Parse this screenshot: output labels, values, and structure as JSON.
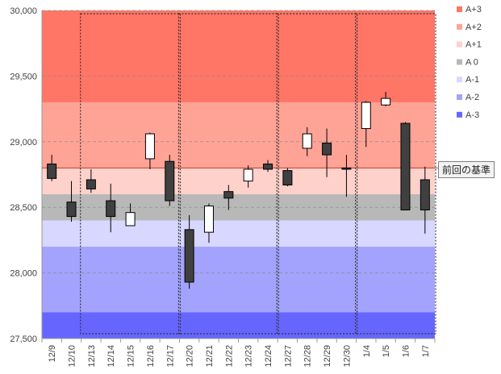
{
  "chart_data": {
    "type": "candlestick",
    "ylim": [
      27500,
      30000
    ],
    "y_ticks": [
      "27,500",
      "28,000",
      "28,500",
      "29,000",
      "29,500",
      "30,000"
    ],
    "y_tick_values": [
      27500,
      28000,
      28500,
      29000,
      29500,
      30000
    ],
    "bands": [
      {
        "name": "A+3",
        "from": 29300,
        "to": 30000,
        "color": "#ff7566"
      },
      {
        "name": "A+2",
        "from": 28800,
        "to": 29300,
        "color": "#ffa396"
      },
      {
        "name": "A+1",
        "from": 28600,
        "to": 28800,
        "color": "#ffd1cb"
      },
      {
        "name": "A 0",
        "from": 28400,
        "to": 28600,
        "color": "#b8b8b8"
      },
      {
        "name": "A-1",
        "from": 28200,
        "to": 28400,
        "color": "#d7d7ff"
      },
      {
        "name": "A-2",
        "from": 27700,
        "to": 28200,
        "color": "#a3a3fe"
      },
      {
        "name": "A-3",
        "from": 27500,
        "to": 27700,
        "color": "#6666ff"
      }
    ],
    "reference_line": {
      "value": 28800,
      "label": "前回の基準"
    },
    "categories": [
      "12/9",
      "12/10",
      "12/13",
      "12/14",
      "12/15",
      "12/16",
      "12/17",
      "12/20",
      "12/21",
      "12/22",
      "12/23",
      "12/24",
      "12/27",
      "12/28",
      "12/29",
      "12/30",
      "1/4",
      "1/5",
      "1/6",
      "1/7"
    ],
    "ohlc": [
      {
        "o": 28830,
        "h": 28900,
        "l": 28700,
        "c": 28720
      },
      {
        "o": 28540,
        "h": 28700,
        "l": 28390,
        "c": 28430
      },
      {
        "o": 28710,
        "h": 28790,
        "l": 28610,
        "c": 28640
      },
      {
        "o": 28550,
        "h": 28680,
        "l": 28310,
        "c": 28430
      },
      {
        "o": 28360,
        "h": 28530,
        "l": 28360,
        "c": 28460
      },
      {
        "o": 28870,
        "h": 29070,
        "l": 28790,
        "c": 29060
      },
      {
        "o": 28850,
        "h": 28900,
        "l": 28510,
        "c": 28550
      },
      {
        "o": 28330,
        "h": 28440,
        "l": 27880,
        "c": 27930
      },
      {
        "o": 28310,
        "h": 28530,
        "l": 28230,
        "c": 28510
      },
      {
        "o": 28620,
        "h": 28670,
        "l": 28480,
        "c": 28570
      },
      {
        "o": 28700,
        "h": 28820,
        "l": 28650,
        "c": 28790
      },
      {
        "o": 28830,
        "h": 28860,
        "l": 28770,
        "c": 28790
      },
      {
        "o": 28780,
        "h": 28800,
        "l": 28660,
        "c": 28670
      },
      {
        "o": 28950,
        "h": 29110,
        "l": 28890,
        "c": 29060
      },
      {
        "o": 28990,
        "h": 29100,
        "l": 28730,
        "c": 28900
      },
      {
        "o": 28800,
        "h": 28900,
        "l": 28580,
        "c": 28790
      },
      {
        "o": 29100,
        "h": 29310,
        "l": 28960,
        "c": 29300
      },
      {
        "o": 29280,
        "h": 29380,
        "l": 29270,
        "c": 29330
      },
      {
        "o": 29140,
        "h": 29150,
        "l": 28480,
        "c": 28480
      },
      {
        "o": 28710,
        "h": 28810,
        "l": 28300,
        "c": 28480
      }
    ],
    "week_groups": [
      {
        "first": "12/13",
        "last": "12/17"
      },
      {
        "first": "12/20",
        "last": "12/24"
      },
      {
        "first": "12/27",
        "last": "12/30"
      },
      {
        "first": "1/4",
        "last": "1/7"
      }
    ]
  }
}
